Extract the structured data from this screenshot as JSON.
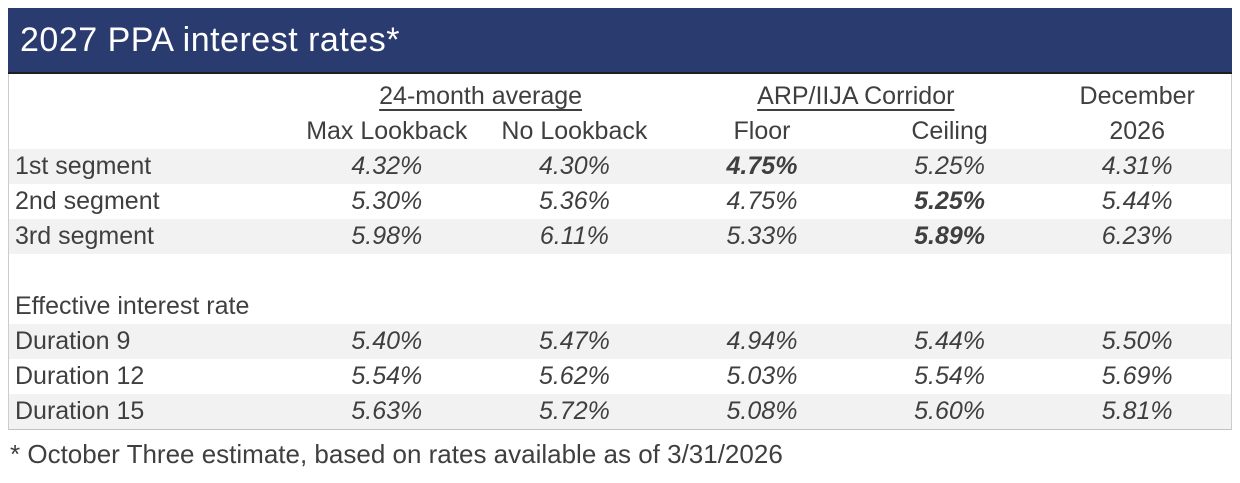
{
  "title": "2027 PPA interest rates*",
  "footnote": "* October Three estimate, based on rates available as of 3/31/2026",
  "colors": {
    "title_bar_bg": "#2a3b70",
    "title_text": "#ffffff",
    "body_text": "#3f3f3f",
    "shaded_row_bg": "#f2f2f2",
    "table_border": "#cccccc",
    "title_underline": "#1f1f1f"
  },
  "table": {
    "group_headers": {
      "avg": "24-month average",
      "corridor": "ARP/IIJA Corridor",
      "december_line1": "December"
    },
    "sub_headers": {
      "max_lookback": "Max Lookback",
      "no_lookback": "No Lookback",
      "floor": "Floor",
      "ceiling": "Ceiling",
      "december_line2": "2026"
    },
    "rows": [
      {
        "label": "1st segment",
        "type": "data",
        "shaded": true,
        "values": [
          "4.32%",
          "4.30%",
          "4.75%",
          "5.25%",
          "4.31%"
        ],
        "bold": [
          2
        ]
      },
      {
        "label": "2nd segment",
        "type": "data",
        "shaded": false,
        "values": [
          "5.30%",
          "5.36%",
          "4.75%",
          "5.25%",
          "5.44%"
        ],
        "bold": [
          3
        ]
      },
      {
        "label": "3rd segment",
        "type": "data",
        "shaded": true,
        "values": [
          "5.98%",
          "6.11%",
          "5.33%",
          "5.89%",
          "6.23%"
        ],
        "bold": [
          3
        ]
      },
      {
        "label": "",
        "type": "spacer",
        "shaded": false,
        "values": [
          "",
          "",
          "",
          "",
          ""
        ],
        "bold": []
      },
      {
        "label": "Effective interest rate",
        "type": "section",
        "shaded": false,
        "values": [
          "",
          "",
          "",
          "",
          ""
        ],
        "bold": []
      },
      {
        "label": "Duration 9",
        "type": "data",
        "shaded": true,
        "values": [
          "5.40%",
          "5.47%",
          "4.94%",
          "5.44%",
          "5.50%"
        ],
        "bold": []
      },
      {
        "label": "Duration 12",
        "type": "data",
        "shaded": false,
        "values": [
          "5.54%",
          "5.62%",
          "5.03%",
          "5.54%",
          "5.69%"
        ],
        "bold": []
      },
      {
        "label": "Duration 15",
        "type": "data",
        "shaded": true,
        "values": [
          "5.63%",
          "5.72%",
          "5.08%",
          "5.60%",
          "5.81%"
        ],
        "bold": []
      }
    ]
  }
}
